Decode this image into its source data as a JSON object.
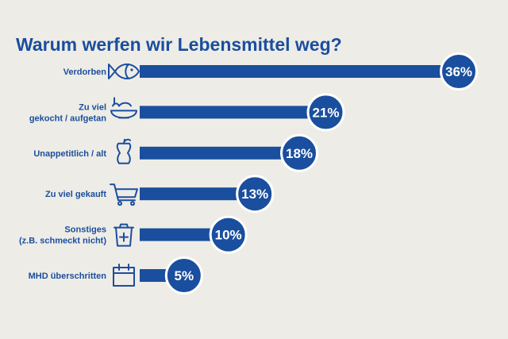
{
  "chart_data": {
    "type": "bar",
    "orientation": "horizontal",
    "title": "Warum werfen wir Lebensmittel weg?",
    "categories": [
      [
        "Verdorben"
      ],
      [
        "Zu viel",
        "gekocht / aufgetan"
      ],
      [
        "Unappetitlich / alt"
      ],
      [
        "Zu viel gekauft"
      ],
      [
        "Sonstiges",
        "(z.B. schmeckt nicht)"
      ],
      [
        "MHD überschritten"
      ]
    ],
    "icons": [
      "fish-icon",
      "bowl-icon",
      "apple-core-icon",
      "shopping-cart-icon",
      "trash-bin-icon",
      "calendar-icon"
    ],
    "values": [
      36,
      21,
      18,
      13,
      10,
      5
    ],
    "value_labels": [
      "36%",
      "21%",
      "18%",
      "13%",
      "10%",
      "5%"
    ],
    "unit": "%",
    "xlim": [
      0,
      36
    ],
    "colors": {
      "bar": "#1a4e9e",
      "text": "#1a4e9e",
      "background": "#eeece6",
      "label_text": "#ffffff"
    }
  }
}
